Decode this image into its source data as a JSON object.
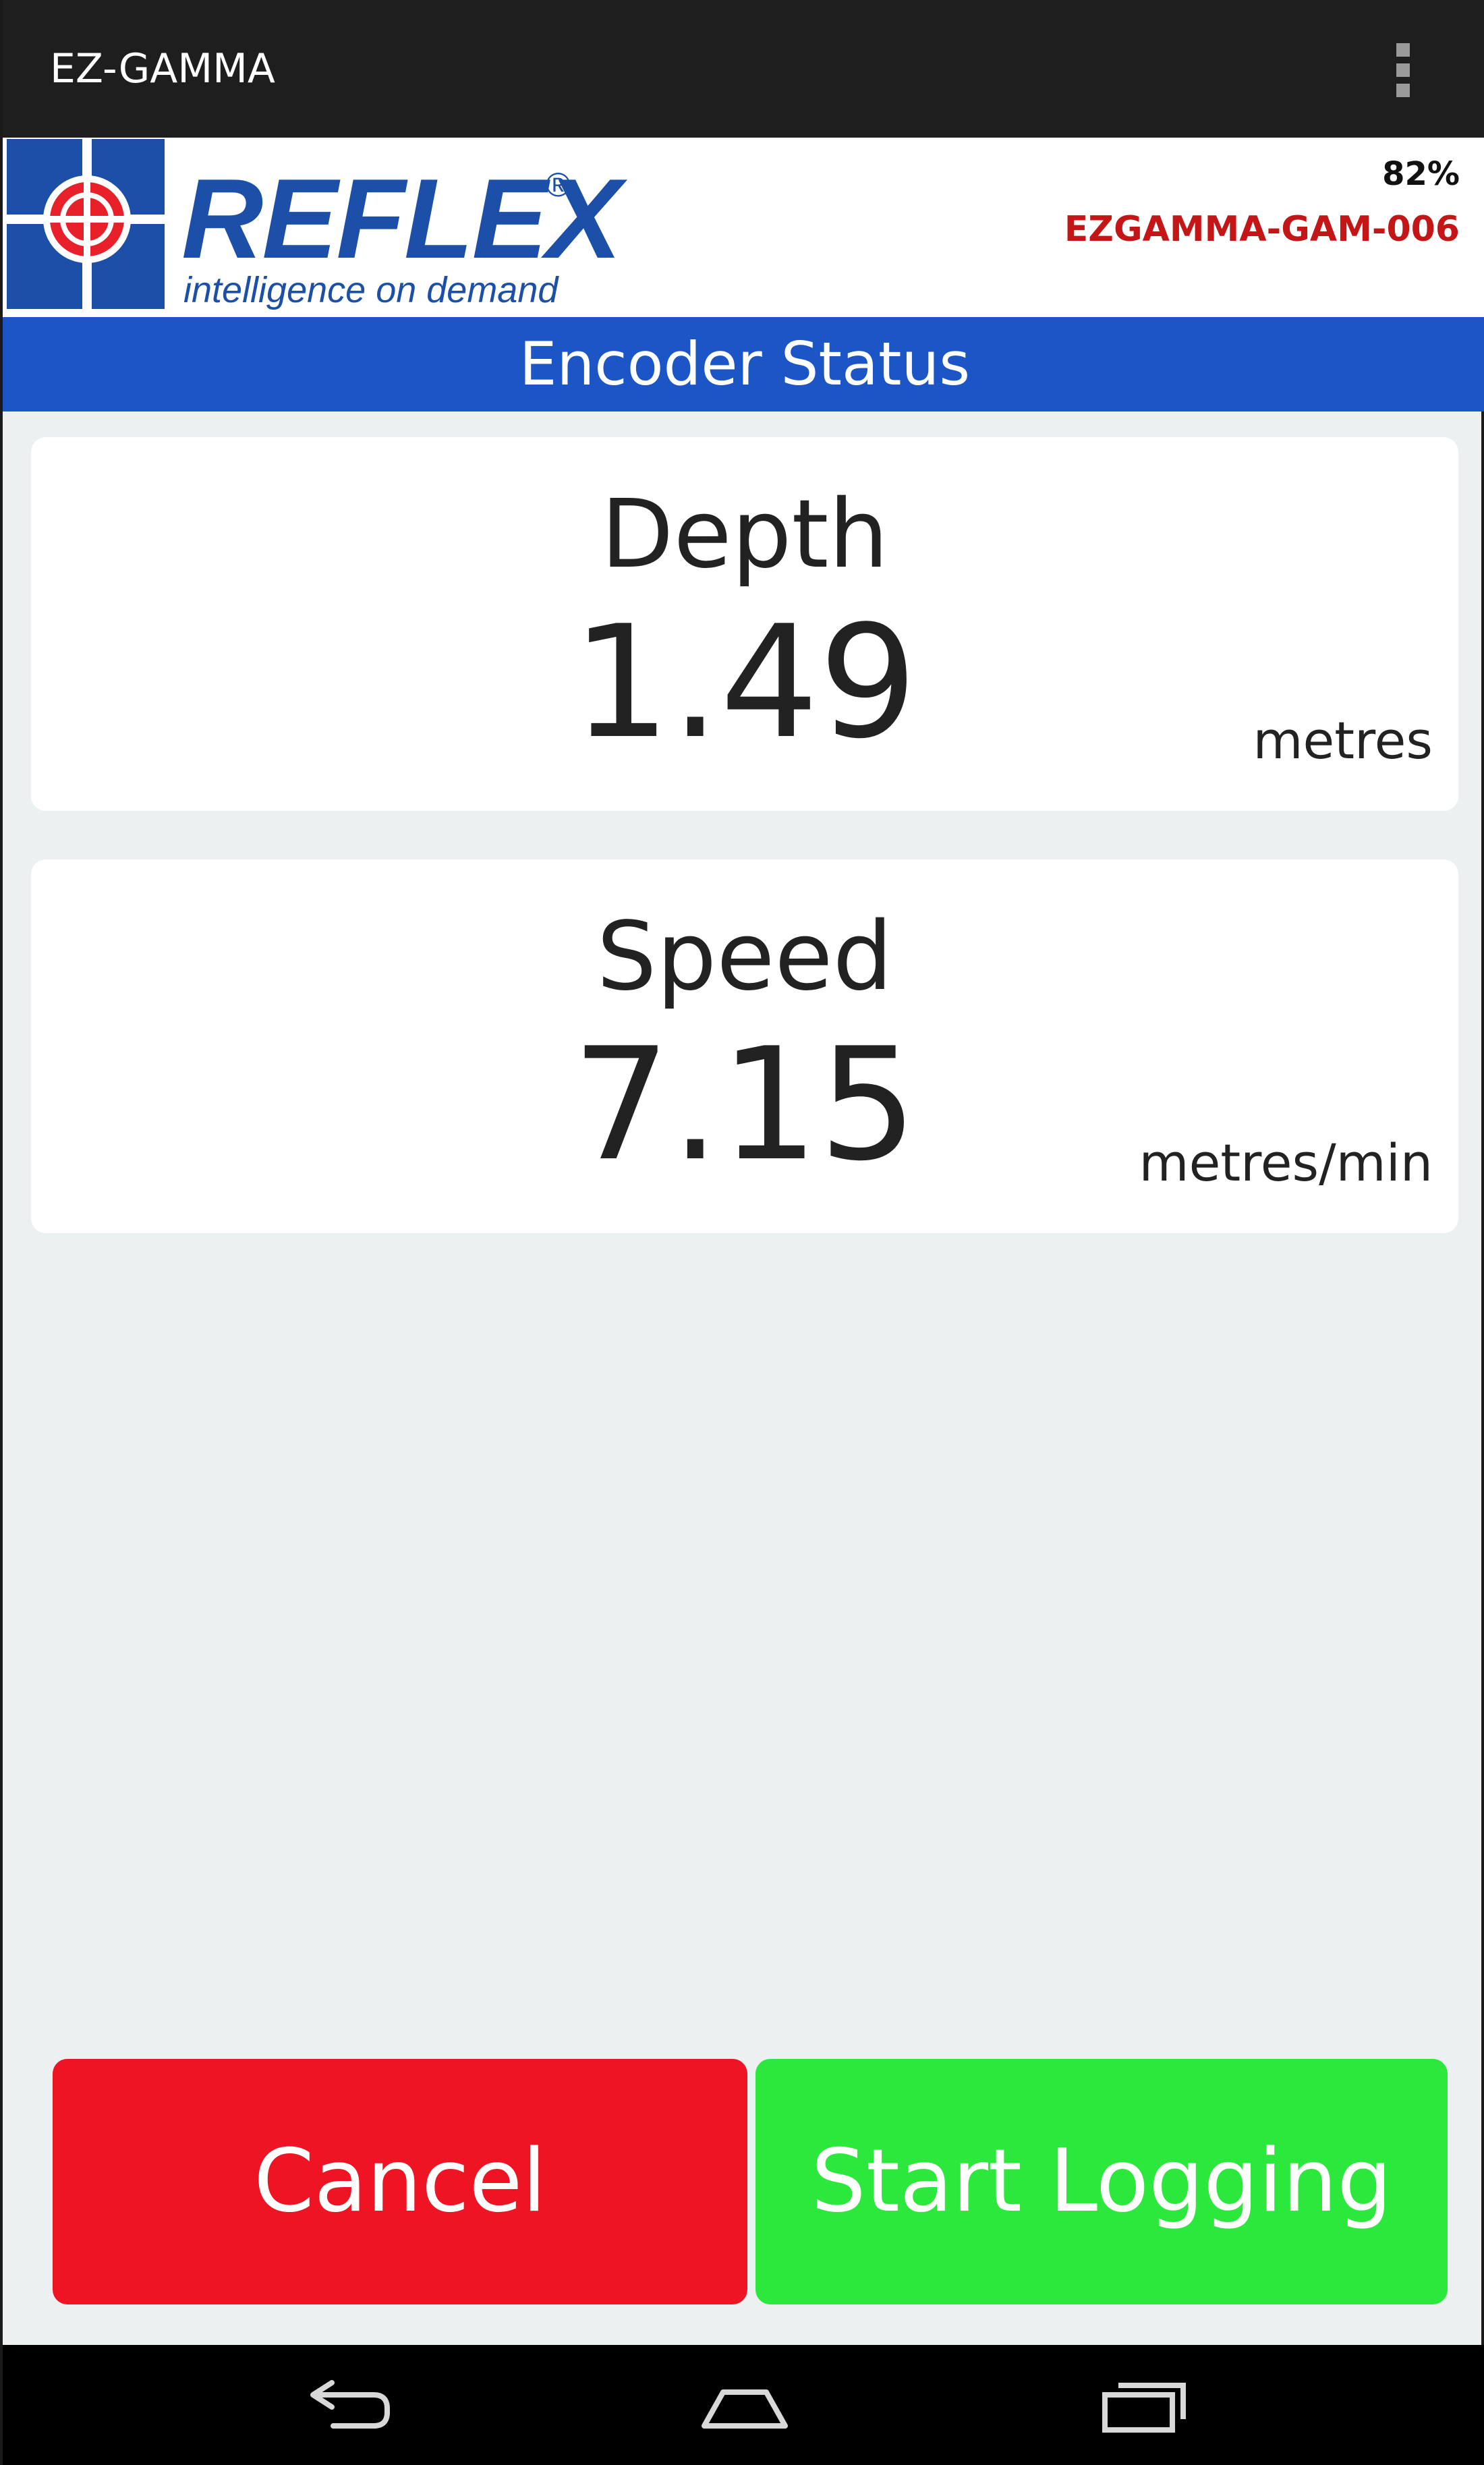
{
  "app": {
    "title": "EZ-GAMMA",
    "overflow_icon": "overflow-menu-icon"
  },
  "header": {
    "logo_wordmark": "REFLEX",
    "logo_registered": "®",
    "logo_tagline": "intelligence on demand",
    "battery": "82%",
    "device_id": "EZGAMMA-GAM-006"
  },
  "section": {
    "title": "Encoder Status"
  },
  "readings": {
    "depth": {
      "label": "Depth",
      "value": "1.49",
      "unit": "metres"
    },
    "speed": {
      "label": "Speed",
      "value": "7.15",
      "unit": "metres/min"
    }
  },
  "buttons": {
    "cancel": "Cancel",
    "start_logging": "Start Logging"
  },
  "nav": {
    "back_icon": "back-icon",
    "home_icon": "home-icon",
    "recents_icon": "recent-apps-icon"
  },
  "colors": {
    "action_bar": "#1e1e1e",
    "brand_blue": "#1c4fa8",
    "section_blue": "#1b55c6",
    "device_id_red": "#c41616",
    "cancel_red": "#ef1424",
    "start_green": "#2de83c",
    "logo_red": "#e8202a"
  }
}
